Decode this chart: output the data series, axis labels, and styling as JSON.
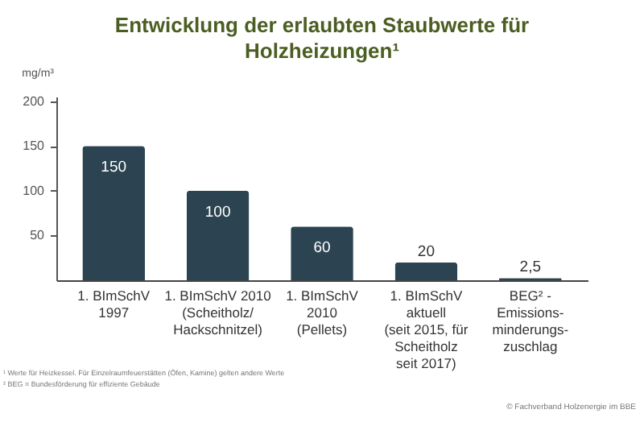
{
  "chart_data": {
    "type": "bar",
    "title": "Entwicklung der erlaubten Staubwerte für Holzheizungen¹",
    "ylabel": "mg/m³",
    "categories": [
      "1. BImSchV\n1997",
      "1. BImSchV 2010\n(Scheitholz/\nHackschnitzel)",
      "1. BImSchV\n2010\n(Pellets)",
      "1. BImSchV\naktuell\n(seit 2015, für\nScheitholz\nseit 2017)",
      "BEG² -\nEmissions-\nminderungs-\nzuschlag"
    ],
    "values": [
      150,
      100,
      60,
      20,
      2.5
    ],
    "value_labels": [
      "150",
      "100",
      "60",
      "20",
      "2,5"
    ],
    "color": "#2c4452",
    "ylim": [
      0,
      205
    ],
    "yticks": [
      50,
      100,
      150,
      200
    ],
    "grid": false,
    "annotations": [
      "¹ Werte für Heizkessel. Für Einzelraumfeuerstätten (Öfen, Kamine) gelten andere Werte",
      "² BEG = Bundesförderung für effiziente Gebäude",
      "© Fachverband Holzenergie im BBE"
    ]
  }
}
